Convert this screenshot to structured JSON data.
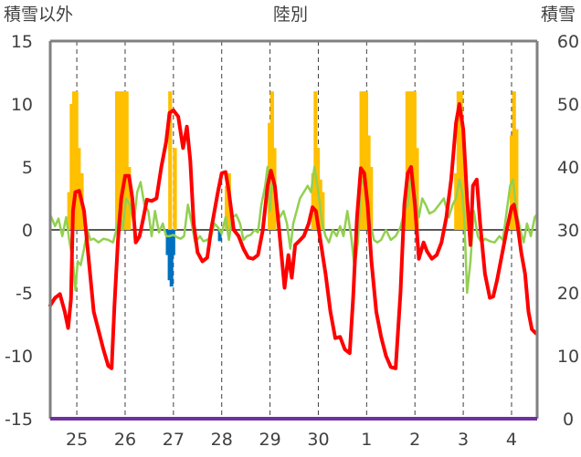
{
  "chart_data": {
    "type": "bar+line",
    "title": "陸別",
    "left_axis_label": "積雪以外",
    "right_axis_label": "積雪",
    "left_ylim": [
      -15,
      15
    ],
    "left_ticks": [
      "15",
      "10",
      "5",
      "0",
      "-5",
      "-10",
      "-15"
    ],
    "right_ylim": [
      0,
      60
    ],
    "right_ticks": [
      "60",
      "50",
      "40",
      "30",
      "20",
      "10",
      "0"
    ],
    "x_day_labels": [
      "25",
      "26",
      "27",
      "28",
      "29",
      "30",
      "1",
      "2",
      "3",
      "4"
    ],
    "grid": "dashed vertical per day, horizontal at 0",
    "colors": {
      "temperature": "#ff0000",
      "wind": "#92d050",
      "snow_depth": "#ffc000",
      "precipitation": "#0070c0",
      "baseline": "#7030a0",
      "frame": "#808080"
    },
    "series": [
      {
        "kind": "line",
        "axis": "left",
        "points": [
          [
            24.45,
            -6.0
          ],
          [
            24.55,
            -5.4
          ],
          [
            24.65,
            -5.1
          ],
          [
            24.75,
            -6.5
          ],
          [
            24.82,
            -7.8
          ],
          [
            24.88,
            -5.5
          ],
          [
            24.92,
            1.5
          ],
          [
            24.97,
            3.0
          ],
          [
            25.05,
            3.1
          ],
          [
            25.15,
            1.5
          ],
          [
            25.25,
            -2.5
          ],
          [
            25.35,
            -6.5
          ],
          [
            25.45,
            -8.0
          ],
          [
            25.55,
            -9.5
          ],
          [
            25.65,
            -10.8
          ],
          [
            25.72,
            -11.0
          ],
          [
            25.78,
            -6.0
          ],
          [
            25.85,
            -1.0
          ],
          [
            25.92,
            2.5
          ],
          [
            26.0,
            4.3
          ],
          [
            26.08,
            4.3
          ],
          [
            26.15,
            2.5
          ],
          [
            26.22,
            -1.0
          ],
          [
            26.3,
            -0.5
          ],
          [
            26.38,
            1.0
          ],
          [
            26.45,
            2.4
          ],
          [
            26.55,
            2.3
          ],
          [
            26.65,
            2.5
          ],
          [
            26.75,
            5.0
          ],
          [
            26.85,
            7.0
          ],
          [
            26.92,
            9.3
          ],
          [
            27.0,
            9.5
          ],
          [
            27.1,
            9.0
          ],
          [
            27.2,
            6.5
          ],
          [
            27.28,
            8.2
          ],
          [
            27.35,
            5.5
          ],
          [
            27.42,
            0.5
          ],
          [
            27.5,
            -1.8
          ],
          [
            27.6,
            -2.5
          ],
          [
            27.7,
            -2.2
          ],
          [
            27.78,
            0.0
          ],
          [
            27.85,
            1.5
          ],
          [
            27.92,
            3.0
          ],
          [
            28.0,
            4.5
          ],
          [
            28.08,
            4.6
          ],
          [
            28.15,
            3.0
          ],
          [
            28.25,
            0.0
          ],
          [
            28.35,
            -0.5
          ],
          [
            28.45,
            -1.5
          ],
          [
            28.55,
            -2.2
          ],
          [
            28.65,
            -2.3
          ],
          [
            28.75,
            -2.0
          ],
          [
            28.85,
            0.0
          ],
          [
            28.95,
            3.5
          ],
          [
            29.02,
            4.7
          ],
          [
            29.1,
            3.5
          ],
          [
            29.2,
            -0.5
          ],
          [
            29.3,
            -4.6
          ],
          [
            29.38,
            -2.0
          ],
          [
            29.45,
            -3.8
          ],
          [
            29.52,
            -1.2
          ],
          [
            29.6,
            -0.9
          ],
          [
            29.7,
            -0.5
          ],
          [
            29.8,
            0.5
          ],
          [
            29.88,
            1.8
          ],
          [
            29.95,
            1.5
          ],
          [
            30.05,
            -1.0
          ],
          [
            30.15,
            -3.5
          ],
          [
            30.25,
            -6.5
          ],
          [
            30.35,
            -8.6
          ],
          [
            30.45,
            -8.5
          ],
          [
            30.55,
            -9.5
          ],
          [
            30.65,
            -9.8
          ],
          [
            30.72,
            -5.5
          ],
          [
            30.8,
            1.0
          ],
          [
            30.88,
            4.9
          ],
          [
            30.95,
            4.5
          ],
          [
            31.02,
            2.0
          ],
          [
            31.1,
            -2.5
          ],
          [
            31.2,
            -6.5
          ],
          [
            31.3,
            -8.5
          ],
          [
            31.4,
            -10.0
          ],
          [
            31.5,
            -10.9
          ],
          [
            31.6,
            -11.0
          ],
          [
            31.7,
            -5.0
          ],
          [
            31.78,
            2.0
          ],
          [
            31.85,
            4.5
          ],
          [
            31.92,
            5.0
          ],
          [
            32.0,
            2.0
          ],
          [
            32.08,
            -2.3
          ],
          [
            32.18,
            -1.0
          ],
          [
            32.25,
            -1.7
          ],
          [
            32.35,
            -2.3
          ],
          [
            32.45,
            -2.0
          ],
          [
            32.55,
            -1.0
          ],
          [
            32.65,
            1.0
          ],
          [
            32.75,
            4.0
          ],
          [
            32.85,
            8.5
          ],
          [
            32.92,
            10.0
          ],
          [
            33.0,
            8.0
          ],
          [
            33.08,
            2.5
          ],
          [
            33.15,
            -1.2
          ],
          [
            33.2,
            3.5
          ],
          [
            33.28,
            4.0
          ],
          [
            33.35,
            0.5
          ],
          [
            33.45,
            -3.5
          ],
          [
            33.55,
            -5.4
          ],
          [
            33.62,
            -5.3
          ],
          [
            33.7,
            -4.0
          ],
          [
            33.8,
            -2.0
          ],
          [
            33.9,
            0.0
          ],
          [
            34.0,
            1.8
          ],
          [
            34.05,
            2.0
          ],
          [
            34.12,
            0.5
          ],
          [
            34.2,
            -1.8
          ],
          [
            34.28,
            -3.5
          ],
          [
            34.35,
            -6.5
          ],
          [
            34.42,
            -7.9
          ],
          [
            34.5,
            -8.2
          ]
        ]
      },
      {
        "kind": "line",
        "axis": "left",
        "points": [
          [
            24.45,
            1.2
          ],
          [
            24.55,
            0.3
          ],
          [
            24.62,
            0.9
          ],
          [
            24.7,
            -0.5
          ],
          [
            24.78,
            1.0
          ],
          [
            24.85,
            -1.0
          ],
          [
            24.92,
            -2.5
          ],
          [
            24.97,
            -4.8
          ],
          [
            25.02,
            -2.5
          ],
          [
            25.08,
            -2.8
          ],
          [
            25.15,
            -1.5
          ],
          [
            25.22,
            0.0
          ],
          [
            25.28,
            -0.8
          ],
          [
            25.35,
            -0.7
          ],
          [
            25.45,
            -1.0
          ],
          [
            25.55,
            -0.7
          ],
          [
            25.65,
            -0.8
          ],
          [
            25.75,
            -1.0
          ],
          [
            25.82,
            0.0
          ],
          [
            25.88,
            1.5
          ],
          [
            25.95,
            0.0
          ],
          [
            26.02,
            2.5
          ],
          [
            26.1,
            2.0
          ],
          [
            26.18,
            0.5
          ],
          [
            26.25,
            3.0
          ],
          [
            26.32,
            3.8
          ],
          [
            26.4,
            2.0
          ],
          [
            26.48,
            1.5
          ],
          [
            26.55,
            -0.5
          ],
          [
            26.62,
            1.5
          ],
          [
            26.7,
            -0.2
          ],
          [
            26.78,
            0.5
          ],
          [
            26.85,
            -0.5
          ],
          [
            26.92,
            -0.5
          ],
          [
            27.0,
            -0.4
          ],
          [
            27.08,
            -0.6
          ],
          [
            27.15,
            -0.7
          ],
          [
            27.22,
            -0.5
          ],
          [
            27.3,
            2.0
          ],
          [
            27.38,
            0.5
          ],
          [
            27.45,
            -1.0
          ],
          [
            27.55,
            -0.5
          ],
          [
            27.62,
            -0.9
          ],
          [
            27.7,
            -0.8
          ],
          [
            27.78,
            -0.5
          ],
          [
            27.85,
            0.5
          ],
          [
            27.92,
            0.2
          ],
          [
            28.0,
            -0.3
          ],
          [
            28.08,
            1.0
          ],
          [
            28.15,
            -0.8
          ],
          [
            28.22,
            1.0
          ],
          [
            28.3,
            1.2
          ],
          [
            28.38,
            0.5
          ],
          [
            28.45,
            -0.8
          ],
          [
            28.52,
            -0.5
          ],
          [
            28.6,
            -0.4
          ],
          [
            28.68,
            0.0
          ],
          [
            28.75,
            -0.2
          ],
          [
            28.82,
            2.0
          ],
          [
            28.9,
            3.5
          ],
          [
            28.95,
            5.0
          ],
          [
            29.0,
            1.5
          ],
          [
            29.05,
            4.5
          ],
          [
            29.12,
            2.0
          ],
          [
            29.2,
            1.0
          ],
          [
            29.28,
            1.5
          ],
          [
            29.35,
            0.5
          ],
          [
            29.42,
            -1.5
          ],
          [
            29.48,
            0.5
          ],
          [
            29.55,
            1.5
          ],
          [
            29.62,
            2.5
          ],
          [
            29.7,
            3.0
          ],
          [
            29.78,
            3.5
          ],
          [
            29.85,
            3.0
          ],
          [
            29.92,
            5.0
          ],
          [
            30.0,
            3.0
          ],
          [
            30.08,
            0.5
          ],
          [
            30.15,
            -0.5
          ],
          [
            30.22,
            -1.0
          ],
          [
            30.3,
            0.0
          ],
          [
            30.38,
            -0.5
          ],
          [
            30.45,
            0.3
          ],
          [
            30.52,
            -0.5
          ],
          [
            30.6,
            1.5
          ],
          [
            30.68,
            -0.5
          ],
          [
            30.75,
            -3.0
          ],
          [
            30.82,
            -1.0
          ],
          [
            30.88,
            3.5
          ],
          [
            30.95,
            4.0
          ],
          [
            31.0,
            2.0
          ],
          [
            31.08,
            0.5
          ],
          [
            31.15,
            -0.8
          ],
          [
            31.22,
            -1.0
          ],
          [
            31.3,
            -0.8
          ],
          [
            31.4,
            0.0
          ],
          [
            31.5,
            -0.8
          ],
          [
            31.6,
            -0.5
          ],
          [
            31.7,
            0.2
          ],
          [
            31.78,
            1.5
          ],
          [
            31.85,
            2.0
          ],
          [
            31.92,
            4.5
          ],
          [
            32.0,
            3.0
          ],
          [
            32.08,
            1.0
          ],
          [
            32.15,
            2.5
          ],
          [
            32.22,
            2.0
          ],
          [
            32.3,
            1.3
          ],
          [
            32.4,
            1.5
          ],
          [
            32.5,
            2.0
          ],
          [
            32.6,
            2.5
          ],
          [
            32.7,
            1.0
          ],
          [
            32.78,
            2.0
          ],
          [
            32.85,
            2.5
          ],
          [
            32.92,
            4.0
          ],
          [
            32.98,
            3.0
          ],
          [
            33.02,
            1.0
          ],
          [
            33.08,
            -5.0
          ],
          [
            33.15,
            -2.5
          ],
          [
            33.22,
            1.5
          ],
          [
            33.3,
            -0.5
          ],
          [
            33.38,
            -1.0
          ],
          [
            33.45,
            -0.7
          ],
          [
            33.55,
            -0.9
          ],
          [
            33.65,
            -1.0
          ],
          [
            33.75,
            -0.5
          ],
          [
            33.82,
            -0.8
          ],
          [
            33.9,
            1.5
          ],
          [
            33.97,
            3.5
          ],
          [
            34.03,
            4.0
          ],
          [
            34.1,
            1.5
          ],
          [
            34.18,
            0.0
          ],
          [
            34.25,
            -1.0
          ],
          [
            34.32,
            0.5
          ],
          [
            34.4,
            -0.5
          ],
          [
            34.48,
            1.0
          ],
          [
            34.52,
            1.2
          ]
        ]
      },
      {
        "kind": "bar",
        "axis": "right",
        "points": [
          [
            24.84,
            36.0
          ],
          [
            24.89,
            50.0
          ],
          [
            24.94,
            52.0
          ],
          [
            24.99,
            52.0
          ],
          [
            25.04,
            43.0
          ],
          [
            25.1,
            39.0
          ],
          [
            25.83,
            52.0
          ],
          [
            25.88,
            52.0
          ],
          [
            25.93,
            52.0
          ],
          [
            25.98,
            52.0
          ],
          [
            26.03,
            52.0
          ],
          [
            26.08,
            40.0
          ],
          [
            26.93,
            52.0
          ],
          [
            27.03,
            43.0
          ],
          [
            28.1,
            37.0
          ],
          [
            28.15,
            39.0
          ],
          [
            28.99,
            47.0
          ],
          [
            29.04,
            52.0
          ],
          [
            29.09,
            43.0
          ],
          [
            29.89,
            39.0
          ],
          [
            29.94,
            52.0
          ],
          [
            29.99,
            43.0
          ],
          [
            30.04,
            38.0
          ],
          [
            30.09,
            36.0
          ],
          [
            30.89,
            52.0
          ],
          [
            30.94,
            52.0
          ],
          [
            30.99,
            52.0
          ],
          [
            31.04,
            45.0
          ],
          [
            31.09,
            40.0
          ],
          [
            31.84,
            52.0
          ],
          [
            31.89,
            52.0
          ],
          [
            31.94,
            52.0
          ],
          [
            31.99,
            52.0
          ],
          [
            32.04,
            43.0
          ],
          [
            32.85,
            39.0
          ],
          [
            32.9,
            52.0
          ],
          [
            32.95,
            52.0
          ],
          [
            33.0,
            45.0
          ],
          [
            33.05,
            38.0
          ],
          [
            34.0,
            45.0
          ],
          [
            34.05,
            52.0
          ],
          [
            34.1,
            46.0
          ]
        ]
      },
      {
        "kind": "bar",
        "axis": "left",
        "points": [
          [
            26.88,
            -2.0
          ],
          [
            26.92,
            -4.0
          ],
          [
            26.96,
            -4.5
          ],
          [
            27.0,
            -2.0
          ],
          [
            27.96,
            -0.9
          ]
        ]
      }
    ]
  }
}
